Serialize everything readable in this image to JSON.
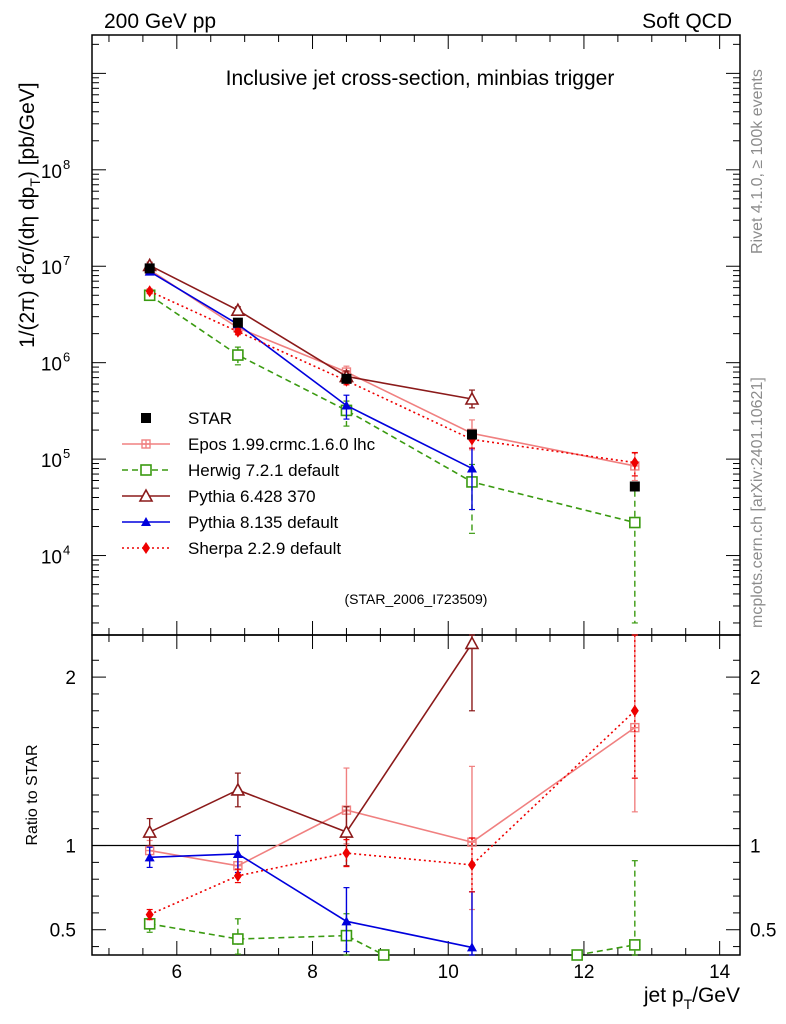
{
  "header": {
    "left": "200 GeV pp",
    "right": "Soft QCD"
  },
  "side_labels": {
    "rivet": "Rivet 4.1.0, ≥ 100k events",
    "mcplots": "mcplots.cern.ch [arXiv:2401.10621]"
  },
  "chart_data": [
    {
      "type": "line",
      "panel": "main",
      "title": "Inclusive jet cross-section, minbias trigger",
      "analysis_tag": "(STAR_2006_I723509)",
      "ylabel": "1/(2π)  d²σ/(dη dp_T) [pb/GeV]",
      "ylabel_parts": {
        "pre": "1/(2π)  d",
        "sup": "2",
        "mid": "σ/(dη dp",
        "sub": "T",
        "post": ") [pb/GeV]"
      },
      "yscale": "log",
      "xlim": [
        4.75,
        14.3
      ],
      "ylim": [
        1500,
        2500000000
      ],
      "y_ticks": [
        {
          "value": 10000,
          "base": "10",
          "exp": "4"
        },
        {
          "value": 100000,
          "base": "10",
          "exp": "5"
        },
        {
          "value": 1000000,
          "base": "10",
          "exp": "6"
        },
        {
          "value": 10000000,
          "base": "10",
          "exp": "7"
        },
        {
          "value": 100000000,
          "base": "10",
          "exp": "8"
        }
      ],
      "legend_position": "lower-left",
      "series": [
        {
          "name": "STAR",
          "color": "#000000",
          "marker": "square-filled",
          "line": "none",
          "x": [
            5.6,
            6.9,
            8.5,
            10.35,
            12.75
          ],
          "y": [
            9500000,
            2600000,
            680000,
            180000,
            52000
          ],
          "err_lo": [
            0,
            0,
            0,
            0,
            0
          ],
          "err_hi": [
            0,
            0,
            0,
            0,
            0
          ]
        },
        {
          "name": "Epos 1.99.crmc.1.6.0 lhc",
          "color": "#f08080",
          "marker": "plus-box",
          "line": "solid",
          "x": [
            5.6,
            6.9,
            8.5,
            10.35,
            12.75
          ],
          "y": [
            9200000,
            2300000,
            800000,
            185000,
            85000
          ],
          "err_lo": [
            600000,
            200000,
            120000,
            60000,
            25000
          ],
          "err_hi": [
            600000,
            200000,
            120000,
            70000,
            30000
          ]
        },
        {
          "name": "Herwig 7.2.1 default",
          "color": "#3a9a10",
          "marker": "square-open",
          "line": "dashed",
          "x": [
            5.6,
            6.9,
            8.5,
            10.35,
            12.75
          ],
          "y": [
            5000000,
            1200000,
            320000,
            58000,
            22000
          ],
          "err_lo": [
            400000,
            250000,
            100000,
            41000,
            20000
          ],
          "err_hi": [
            400000,
            250000,
            80000,
            30000,
            25000
          ]
        },
        {
          "name": "Pythia 6.428 370",
          "color": "#8b1a1a",
          "marker": "triangle-open",
          "line": "solid",
          "x": [
            5.6,
            6.9,
            8.5
          ],
          "y": [
            10200000,
            3500000,
            720000
          ],
          "err_lo": [
            800000,
            300000,
            100000
          ],
          "err_hi": [
            800000,
            300000,
            100000
          ]
        },
        {
          "name": "Pythia 8.135 default",
          "color": "#0000dd",
          "marker": "triangle-filled",
          "line": "solid",
          "x": [
            5.6,
            6.9,
            8.5,
            10.35
          ],
          "y": [
            8800000,
            2500000,
            360000,
            80000
          ],
          "err_lo": [
            600000,
            300000,
            100000,
            50000
          ],
          "err_hi": [
            600000,
            300000,
            100000,
            50000
          ]
        },
        {
          "name": "Sherpa 2.2.9 default",
          "color": "#ee0000",
          "marker": "diamond-filled",
          "line": "dotted",
          "x": [
            5.6,
            6.9,
            8.5,
            10.35,
            12.75
          ],
          "y": [
            5500000,
            2100000,
            650000,
            160000,
            92000
          ],
          "err_lo": [
            300000,
            150000,
            60000,
            30000,
            25000
          ],
          "err_hi": [
            300000,
            150000,
            60000,
            30000,
            25000
          ]
        }
      ],
      "extra_segments": [
        {
          "color": "#8b1a1a",
          "marker": "triangle-open",
          "x": [
            8.5,
            10.35
          ],
          "y": [
            720000,
            420000
          ],
          "err_lo": [
            100000,
            80000
          ],
          "err_hi": [
            100000,
            100000
          ]
        }
      ]
    },
    {
      "type": "line",
      "panel": "ratio",
      "ylabel": "Ratio to STAR",
      "xlabel": "jet p_T/GeV",
      "xlabel_parts": {
        "pre": "jet p",
        "sub": "T",
        "post": "/GeV"
      },
      "xlim": [
        4.75,
        14.3
      ],
      "ylim": [
        0.35,
        2.25
      ],
      "x_ticks": [
        6,
        8,
        10,
        12,
        14
      ],
      "y_ticks": [
        0.5,
        1,
        2
      ],
      "reference": 1.0,
      "series": [
        {
          "name": "Epos 1.99.crmc.1.6.0 lhc",
          "x": [
            5.6,
            6.9,
            8.5,
            10.35,
            12.75
          ],
          "y": [
            0.97,
            0.88,
            1.21,
            1.02,
            1.7
          ],
          "err_lo": [
            0.06,
            0.06,
            0.2,
            0.4,
            0.5
          ],
          "err_hi": [
            0.06,
            0.06,
            0.25,
            0.45,
            0.55
          ]
        },
        {
          "name": "Herwig 7.2.1 default",
          "x": [
            5.6,
            6.9,
            8.5,
            9.05
          ],
          "y": [
            0.535,
            0.445,
            0.465,
            0.35
          ],
          "err_lo": [
            0.05,
            0.09,
            0.12,
            0
          ],
          "err_hi": [
            0.05,
            0.12,
            0.13,
            0
          ]
        },
        {
          "name": "Herwig 7.2.1 default (tail)",
          "x": [
            11.9,
            12.75
          ],
          "y": [
            0.35,
            0.41
          ],
          "err_lo": [
            0,
            0.06
          ],
          "err_hi": [
            0,
            0.5
          ]
        },
        {
          "name": "Pythia 6.428 370",
          "x": [
            5.6,
            6.9,
            8.5,
            10.35
          ],
          "y": [
            1.08,
            1.33,
            1.08,
            2.2
          ],
          "err_lo": [
            0.08,
            0.1,
            0.2,
            0.4
          ],
          "err_hi": [
            0.08,
            0.1,
            0.15,
            0.1
          ]
        },
        {
          "name": "Pythia 8.135 default",
          "x": [
            5.6,
            6.9,
            8.5,
            10.35
          ],
          "y": [
            0.93,
            0.95,
            0.55,
            0.395
          ],
          "err_lo": [
            0.06,
            0.11,
            0.18,
            0.25
          ],
          "err_hi": [
            0.06,
            0.11,
            0.2,
            0.33
          ]
        },
        {
          "name": "Sherpa 2.2.9 default",
          "x": [
            5.6,
            6.9,
            8.5,
            10.35,
            12.75
          ],
          "y": [
            0.59,
            0.82,
            0.955,
            0.885,
            1.8
          ],
          "err_lo": [
            0.03,
            0.04,
            0.08,
            0.16,
            0.4
          ],
          "err_hi": [
            0.03,
            0.04,
            0.08,
            0.16,
            0.45
          ]
        }
      ]
    }
  ]
}
